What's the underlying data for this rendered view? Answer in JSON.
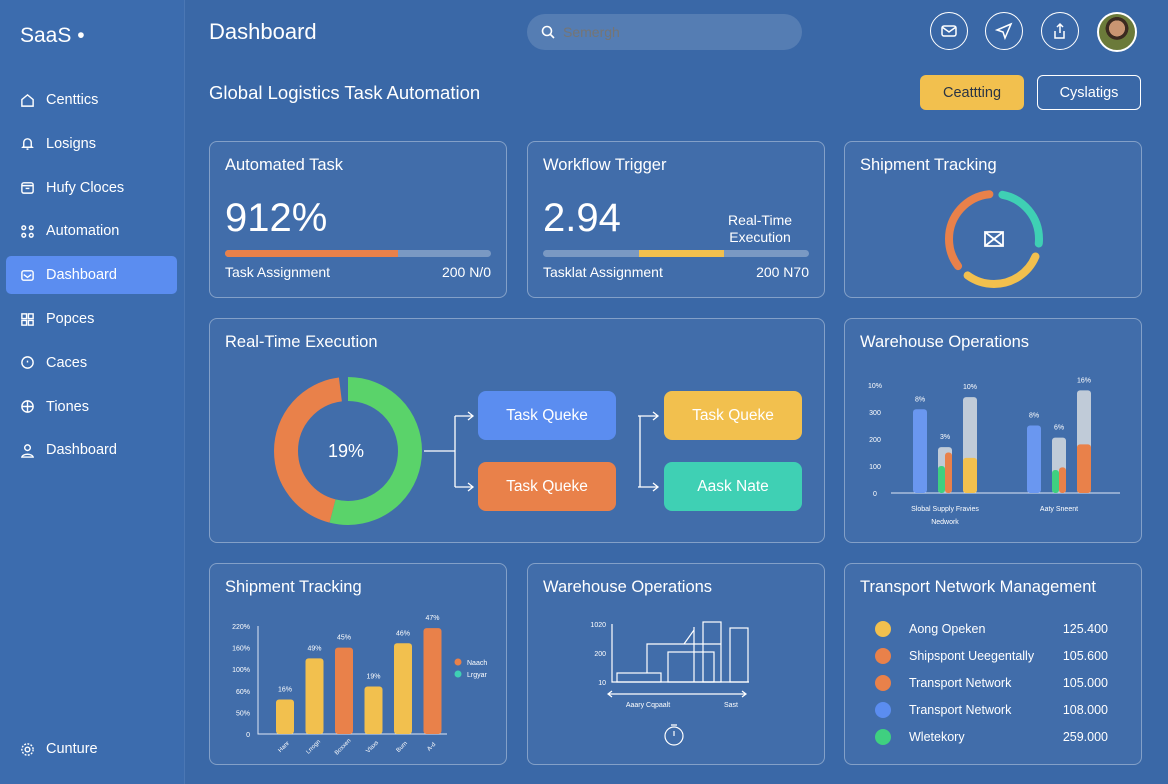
{
  "sidebar": {
    "logo": "SaaS •",
    "items": [
      {
        "label": "Centtics",
        "icon": "home-icon"
      },
      {
        "label": "Losigns",
        "icon": "bell-icon"
      },
      {
        "label": "Hufy Cloces",
        "icon": "archive-icon"
      },
      {
        "label": "Automation",
        "icon": "nodes-icon"
      },
      {
        "label": "Dashboard",
        "icon": "mail-icon",
        "active": true
      },
      {
        "label": "Popces",
        "icon": "grid-icon"
      },
      {
        "label": "Caces",
        "icon": "clock-icon"
      },
      {
        "label": "Tiones",
        "icon": "globe-icon"
      },
      {
        "label": "Dashboard",
        "icon": "user-icon"
      }
    ],
    "footer": "Cunture"
  },
  "header": {
    "title": "Dashboard",
    "search_placeholder": "Semergh",
    "icons": [
      "mail-icon",
      "send-icon",
      "share-icon"
    ]
  },
  "subheader": {
    "title": "Global Logistics Task Automation",
    "primary_button": "Ceattting",
    "secondary_button": "Cyslatigs"
  },
  "cards": {
    "automated": {
      "title": "Automated Task",
      "value": "912%",
      "progress": 0.65,
      "label": "Task Assignment",
      "count": "200 N/0",
      "color": "#e9814a"
    },
    "workflow": {
      "title": "Workflow Trigger",
      "value": "2.94",
      "side": "Real-Time Execution",
      "progress_start": 0.36,
      "progress_end": 0.68,
      "label": "Tasklat Assignment",
      "count": "200 N70",
      "color": "#f2c04e"
    },
    "shipment": {
      "title": "Shipment Tracking",
      "icon": "package-icon",
      "segments": [
        {
          "color": "#3fd0b4",
          "value": 0.25
        },
        {
          "color": "#f2c04e",
          "value": 0.3
        },
        {
          "color": "#e9814a",
          "value": 0.35
        }
      ]
    },
    "realtime": {
      "title": "Real-Time Execution",
      "donut_label": "19%",
      "donut": [
        {
          "color": "#5ad36a",
          "value": 0.56
        },
        {
          "color": "#e9814a",
          "value": 0.44
        }
      ],
      "boxes": [
        {
          "label": "Task Queke",
          "color": "#5b8df0"
        },
        {
          "label": "Task Queke",
          "color": "#e9814a"
        },
        {
          "label": "Task Queke",
          "color": "#f2c04e"
        },
        {
          "label": "Aask Nate",
          "color": "#3fd0b4"
        }
      ]
    },
    "transport": {
      "title": "Transport Network Management",
      "items": [
        {
          "label": "Aong Opeken",
          "value": "125.400",
          "color": "#f2c04e"
        },
        {
          "label": "Shipspont Ueegentally",
          "value": "105.600",
          "color": "#e9814a"
        },
        {
          "label": "Transport Network",
          "value": "105.000",
          "color": "#e9814a"
        },
        {
          "label": "Transport Network",
          "value": "108.000",
          "color": "#5b8df0"
        },
        {
          "label": "Wletekory",
          "value": "259.000",
          "color": "#3fd080"
        }
      ]
    }
  },
  "chart_data": [
    {
      "id": "warehouse1",
      "title": "Warehouse Operations",
      "type": "bar",
      "yticks": [
        "0",
        "100",
        "200",
        "300",
        "10%"
      ],
      "ylim": [
        0,
        400
      ],
      "groups": [
        {
          "label": "Slobal Supply Fravies Nedwork",
          "bars": [
            {
              "label": "8%",
              "segments": [
                {
                  "color": "#6a97f0",
                  "value": 310
                }
              ]
            },
            {
              "label": "3%",
              "segments": [
                {
                  "color": "#c0cbd8",
                  "value": 170
                },
                {
                  "color": "#3fd080",
                  "value": 100,
                  "half": "left"
                },
                {
                  "color": "#e9814a",
                  "value": 150,
                  "half": "right"
                }
              ]
            },
            {
              "label": "10%",
              "segments": [
                {
                  "color": "#c0cbd8",
                  "value": 355
                },
                {
                  "color": "#f2c04e",
                  "value": 130
                }
              ]
            }
          ]
        },
        {
          "label": "Aaty Sneent",
          "bars": [
            {
              "label": "8%",
              "segments": [
                {
                  "color": "#6a97f0",
                  "value": 250
                }
              ]
            },
            {
              "label": "6%",
              "segments": [
                {
                  "color": "#c0cbd8",
                  "value": 205
                },
                {
                  "color": "#3fd080",
                  "value": 85,
                  "half": "left"
                },
                {
                  "color": "#e9814a",
                  "value": 95,
                  "half": "right"
                }
              ]
            },
            {
              "label": "16%",
              "segments": [
                {
                  "color": "#c0cbd8",
                  "value": 380
                },
                {
                  "color": "#e9814a",
                  "value": 180
                }
              ]
            }
          ]
        }
      ]
    },
    {
      "id": "shipment2",
      "title": "Shipment Tracking",
      "type": "bar",
      "yticks": [
        "0",
        "50%",
        "60%",
        "100%",
        "160%",
        "220%"
      ],
      "ylim": [
        0,
        5
      ],
      "categories": [
        "Hanr",
        "Lrrogn",
        "Boxxen",
        "Vlaxs",
        "Burn",
        "A-d"
      ],
      "values": [
        1.6,
        3.5,
        4.0,
        2.2,
        4.2,
        4.9
      ],
      "labels": [
        "16%",
        "49%",
        "45%",
        "19%",
        "46%",
        "47%"
      ],
      "colors": [
        "#f2c04e",
        "#f2c04e",
        "#e9814a",
        "#f2c04e",
        "#f2c04e",
        "#e9814a"
      ],
      "legend": [
        {
          "name": "Naach",
          "color": "#e9814a"
        },
        {
          "name": "Lrgyar",
          "color": "#3fd0b4"
        }
      ]
    },
    {
      "id": "warehouse3",
      "title": "Warehouse Operations",
      "type": "bar",
      "yticks": [
        "10",
        "200",
        "1020"
      ],
      "xlabels": [
        "Aaary Cqpaalt",
        "Sast"
      ],
      "icon": "timer-icon"
    }
  ]
}
